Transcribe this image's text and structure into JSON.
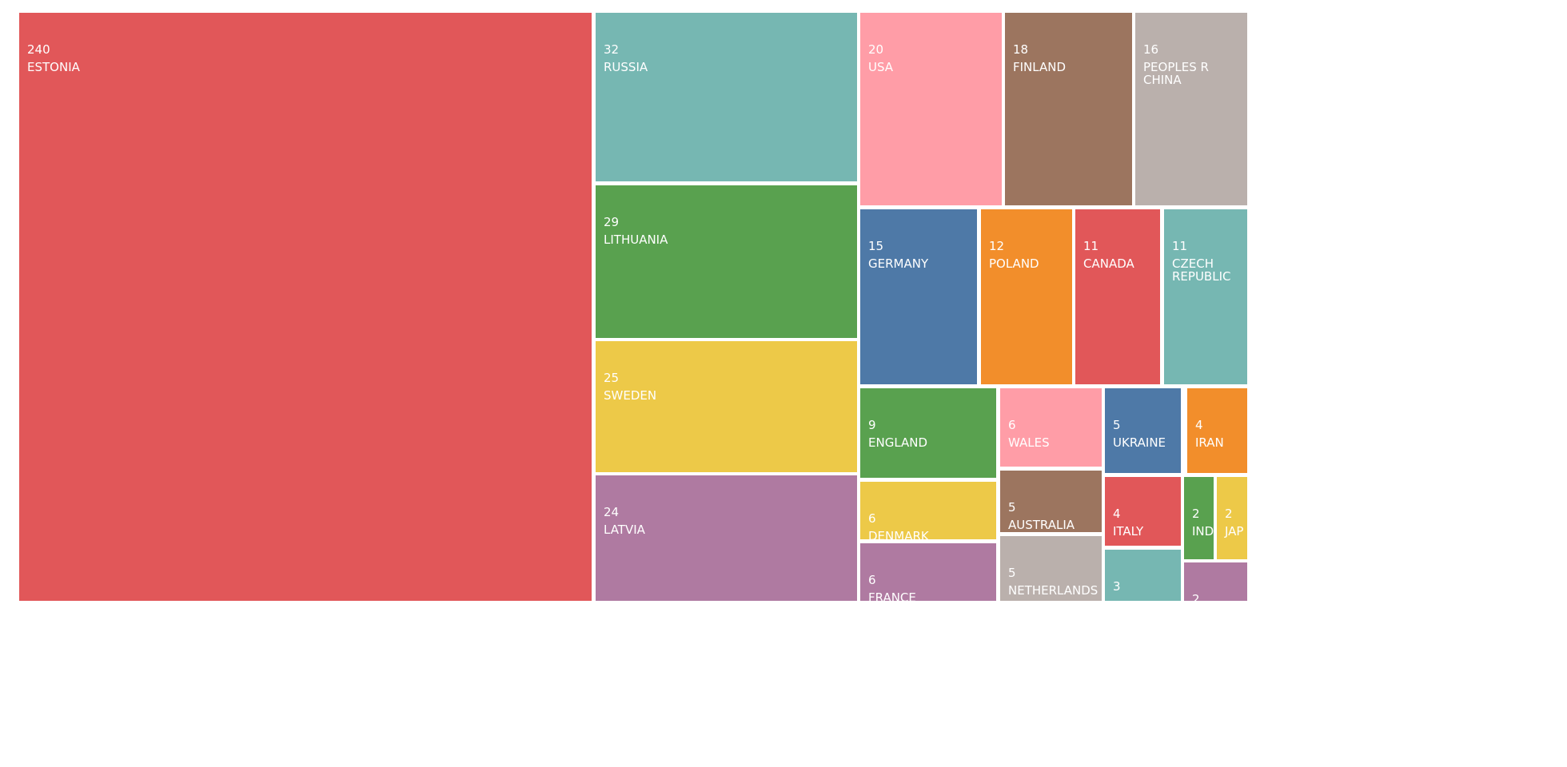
{
  "chart_data": {
    "type": "treemap",
    "title": "",
    "items": [
      {
        "label": "ESTONIA",
        "value": 240,
        "color": "#E15759"
      },
      {
        "label": "RUSSIA",
        "value": 32,
        "color": "#76B7B2"
      },
      {
        "label": "LITHUANIA",
        "value": 29,
        "color": "#59A14F"
      },
      {
        "label": "SWEDEN",
        "value": 25,
        "color": "#EDC948"
      },
      {
        "label": "LATVIA",
        "value": 24,
        "color": "#AF7AA1"
      },
      {
        "label": "USA",
        "value": 20,
        "color": "#FF9DA7"
      },
      {
        "label": "FINLAND",
        "value": 18,
        "color": "#9C755F"
      },
      {
        "label": "PEOPLES R CHINA",
        "value": 16,
        "color": "#BAB0AC"
      },
      {
        "label": "GERMANY",
        "value": 15,
        "color": "#4E79A7"
      },
      {
        "label": "POLAND",
        "value": 12,
        "color": "#F28E2B"
      },
      {
        "label": "CANADA",
        "value": 11,
        "color": "#E15759"
      },
      {
        "label": "CZECH REPUBLIC",
        "value": 11,
        "color": "#76B7B2"
      },
      {
        "label": "ENGLAND",
        "value": 9,
        "color": "#59A14F"
      },
      {
        "label": "DENMARK",
        "value": 6,
        "color": "#EDC948"
      },
      {
        "label": "FRANCE",
        "value": 6,
        "color": "#AF7AA1"
      },
      {
        "label": "WALES",
        "value": 6,
        "color": "#FF9DA7"
      },
      {
        "label": "AUSTRALIA",
        "value": 5,
        "color": "#9C755F"
      },
      {
        "label": "NETHERLANDS",
        "value": 5,
        "color": "#BAB0AC"
      },
      {
        "label": "UKRAINE",
        "value": 5,
        "color": "#4E79A7"
      },
      {
        "label": "ITALY",
        "value": 4,
        "color": "#E15759"
      },
      {
        "label": "",
        "value": 3,
        "color": "#76B7B2"
      },
      {
        "label": "IRAN",
        "value": 4,
        "color": "#F28E2B"
      },
      {
        "label": "IND",
        "value": 2,
        "color": "#59A14F"
      },
      {
        "label": "JAP",
        "value": 2,
        "color": "#EDC948"
      },
      {
        "label": "",
        "value": 2,
        "color": "#AF7AA1"
      }
    ]
  }
}
